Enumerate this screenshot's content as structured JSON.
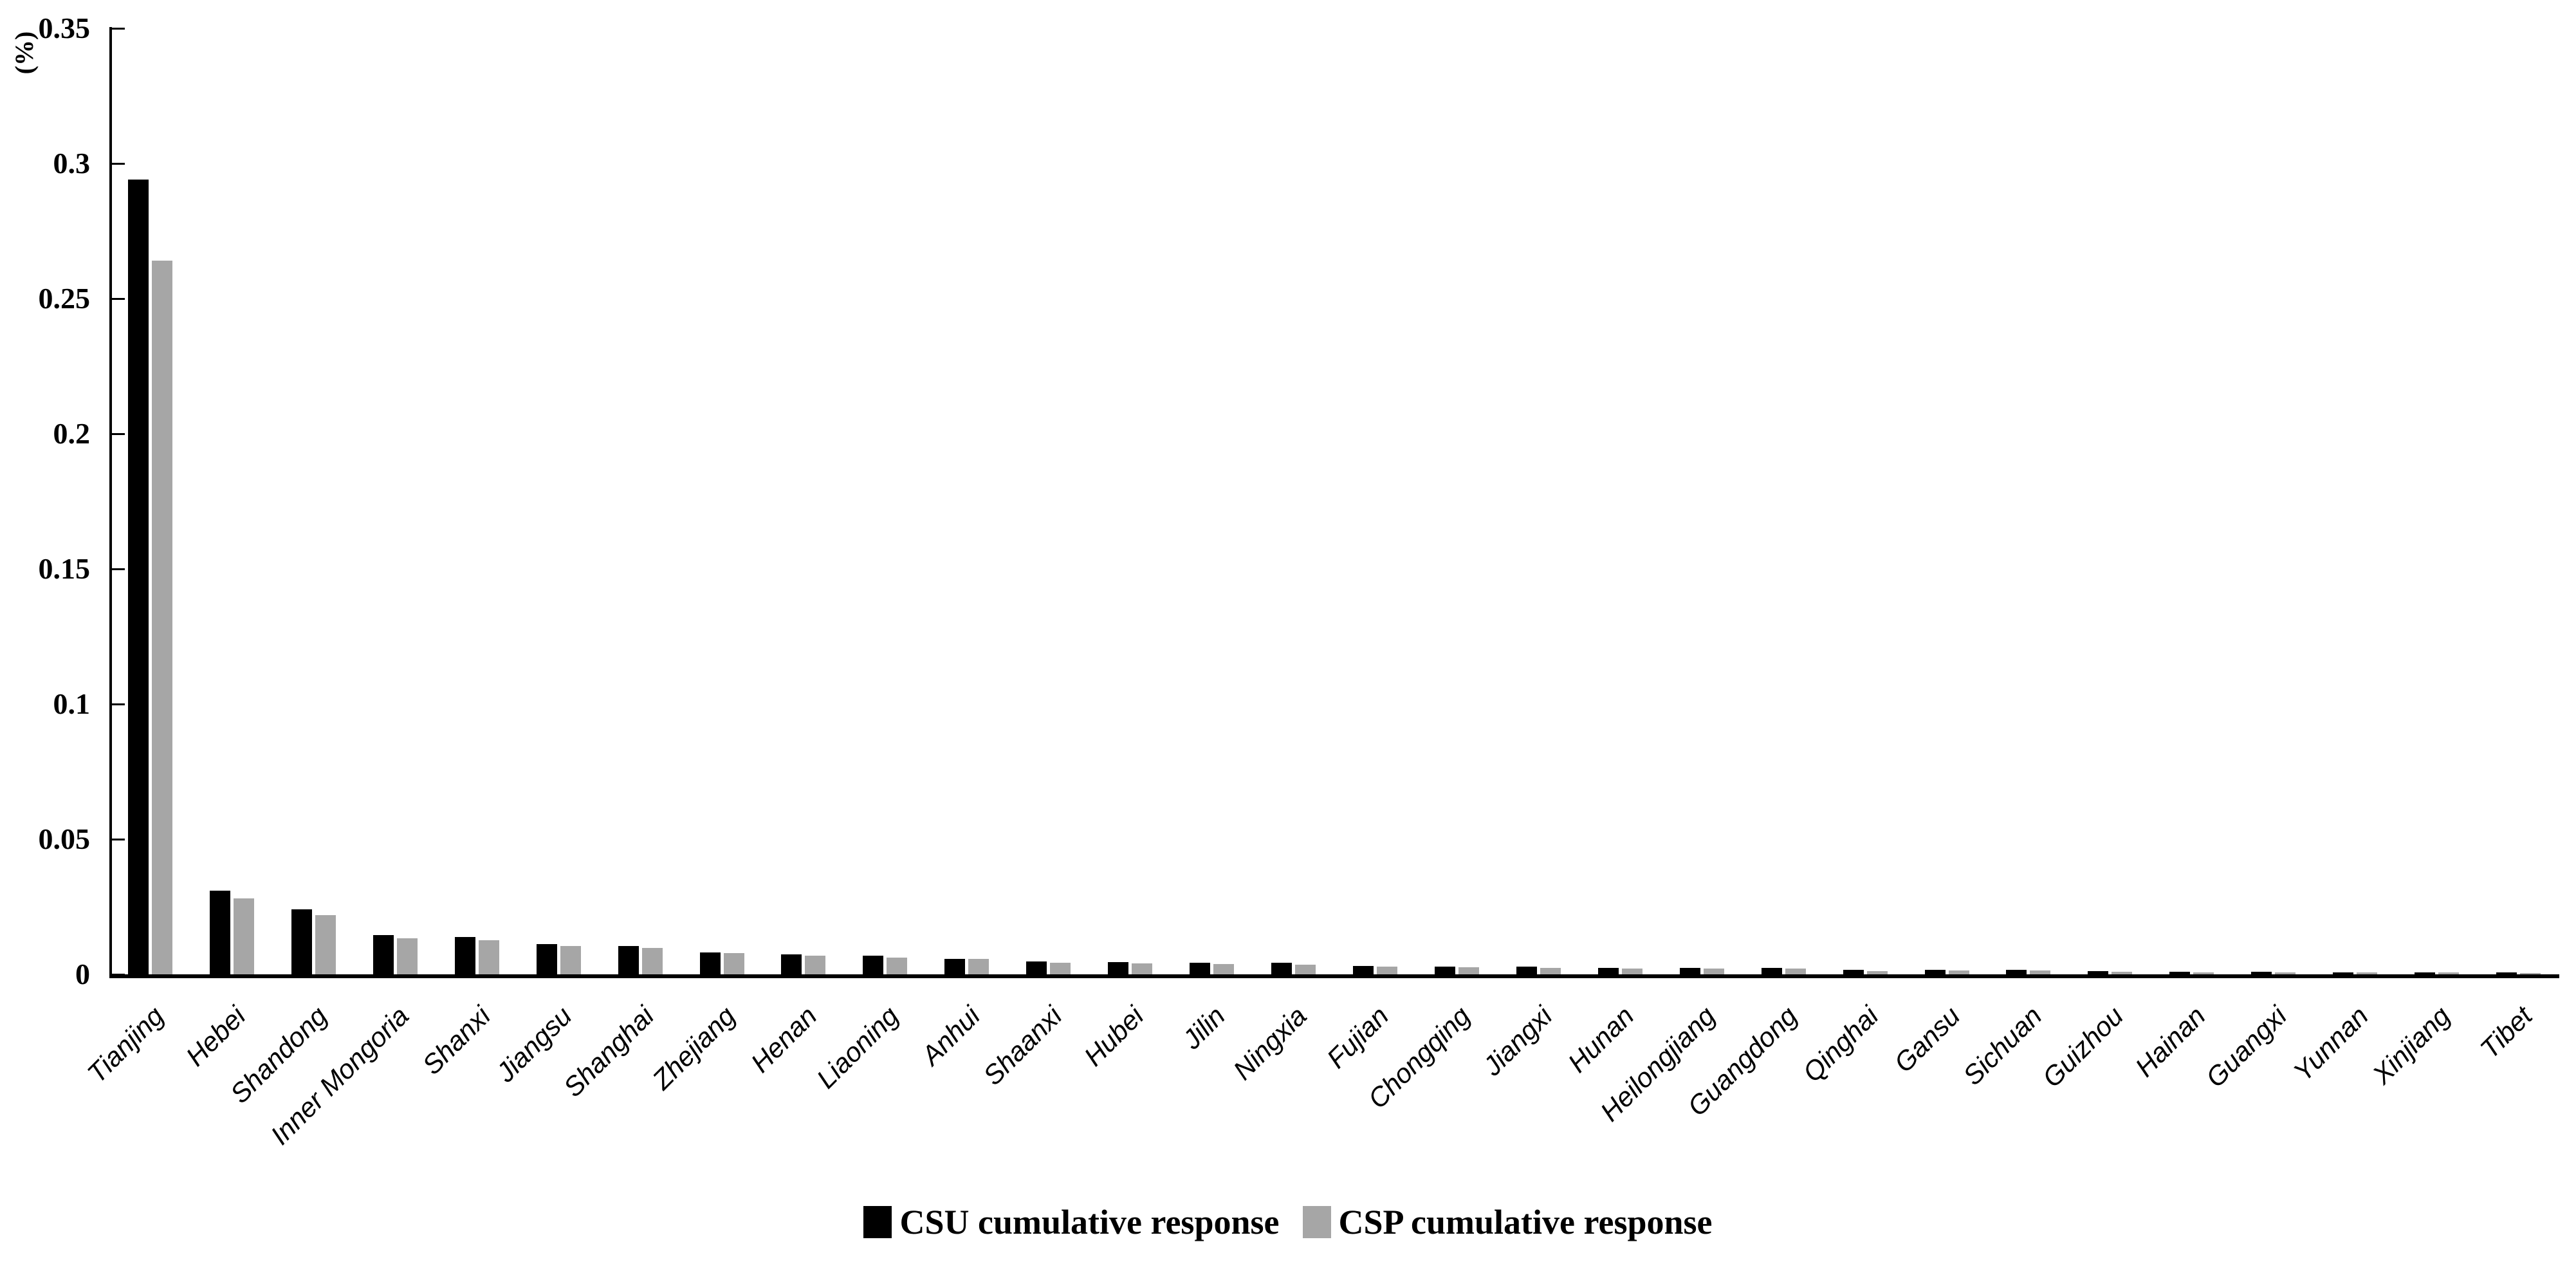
{
  "y_axis": {
    "label": "(%)",
    "ticks": [
      {
        "value": 0.35,
        "label": "0.35"
      },
      {
        "value": 0.3,
        "label": "0.3"
      },
      {
        "value": 0.25,
        "label": "0.25"
      },
      {
        "value": 0.2,
        "label": "0.2"
      },
      {
        "value": 0.15,
        "label": "0.15"
      },
      {
        "value": 0.1,
        "label": "0.1"
      },
      {
        "value": 0.05,
        "label": "0.05"
      },
      {
        "value": 0,
        "label": "0"
      }
    ]
  },
  "legend": {
    "items": [
      {
        "label": "CSU cumulative response",
        "color": "#000000"
      },
      {
        "label": "CSP cumulative response",
        "color": "#a6a6a6"
      }
    ]
  },
  "chart_data": {
    "type": "bar",
    "title": "",
    "xlabel": "",
    "ylabel": "(%)",
    "ylim": [
      0,
      0.35
    ],
    "grid": false,
    "legend_position": "bottom-center",
    "categories": [
      "Tianjing",
      "Hebei",
      "Shandong",
      "Inner Mongoria",
      "Shanxi",
      "Jiangsu",
      "Shanghai",
      "Zhejiang",
      "Henan",
      "Liaoning",
      "Anhui",
      "Shaanxi",
      "Hubei",
      "Jilin",
      "Ningxia",
      "Fujian",
      "Chongqing",
      "Jiangxi",
      "Hunan",
      "Heilongjiang",
      "Guangdong",
      "Qinghai",
      "Gansu",
      "Sichuan",
      "Guizhou",
      "Hainan",
      "Guangxi",
      "Yunnan",
      "Xinjiang",
      "Tibet"
    ],
    "series": [
      {
        "name": "CSU cumulative response",
        "color": "#000000",
        "values": [
          0.294,
          0.031,
          0.024,
          0.0145,
          0.0138,
          0.0112,
          0.0105,
          0.0082,
          0.0073,
          0.0068,
          0.0058,
          0.0047,
          0.0046,
          0.0043,
          0.0042,
          0.0031,
          0.0029,
          0.0028,
          0.0024,
          0.0023,
          0.0023,
          0.0017,
          0.0016,
          0.0016,
          0.0011,
          0.001,
          0.001,
          0.0008,
          0.0008,
          0.0007
        ]
      },
      {
        "name": "CSP cumulative response",
        "color": "#a6a6a6",
        "values": [
          0.264,
          0.028,
          0.022,
          0.0133,
          0.0127,
          0.0105,
          0.0097,
          0.0079,
          0.0068,
          0.0063,
          0.0056,
          0.0042,
          0.0041,
          0.0037,
          0.0036,
          0.0028,
          0.0026,
          0.0025,
          0.0022,
          0.0021,
          0.0021,
          0.0013,
          0.0014,
          0.0014,
          0.0009,
          0.0008,
          0.0008,
          0.0006,
          0.0006,
          0.0005
        ]
      }
    ]
  }
}
